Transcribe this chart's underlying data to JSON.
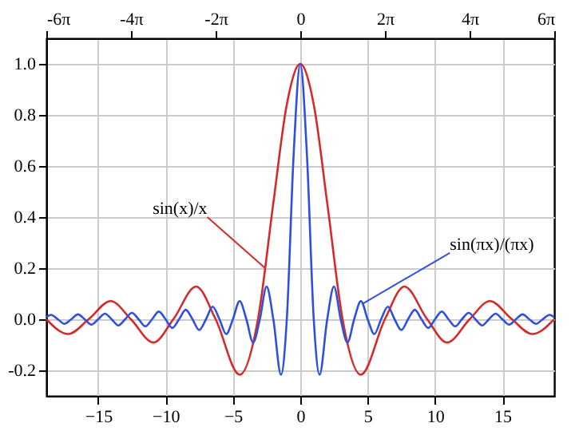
{
  "chart_data": {
    "type": "line",
    "xlim": [
      -18.85,
      18.85
    ],
    "xticks": [
      -15,
      -10,
      -5,
      0,
      5,
      10,
      15
    ],
    "x2lim": [
      -18.85,
      18.85
    ],
    "x2ticks": [
      {
        "value": -18.85,
        "label": "-6π"
      },
      {
        "value": -12.57,
        "label": "-4π"
      },
      {
        "value": -6.28,
        "label": "-2π"
      },
      0,
      {
        "value": 6.28,
        "label": "2π"
      },
      {
        "value": 12.57,
        "label": "4π"
      },
      {
        "value": 18.85,
        "label": "6π"
      }
    ],
    "ylim": [
      -0.3,
      1.1
    ],
    "yticks": [
      {
        "value": -0.2,
        "label": "-0.2"
      },
      {
        "value": 0,
        "label": "0.0"
      },
      {
        "value": 0.2,
        "label": "0.2"
      },
      {
        "value": 0.4,
        "label": "0.4"
      },
      {
        "value": 0.6,
        "label": "0.6"
      },
      {
        "value": 0.8,
        "label": "0.8"
      },
      {
        "value": 1.0,
        "label": "1.0"
      }
    ],
    "grid": true,
    "line_style": "solid",
    "marker": "none",
    "series": [
      {
        "color": "#d42a2a",
        "x": [
          -18.85,
          -17.22,
          -15.71,
          -14.07,
          -12.57,
          -10.9,
          -9.42,
          -7.73,
          -6.28,
          -4.49,
          -3.14,
          -2,
          -1,
          0,
          1,
          2,
          3.14,
          4.49,
          6.28,
          7.73,
          9.42,
          10.9,
          12.57,
          14.07,
          15.71,
          17.22,
          18.85
        ],
        "values": [
          0,
          -0.058,
          0,
          0.071,
          0,
          -0.091,
          0,
          0.128,
          0,
          -0.217,
          0,
          0.455,
          0.841,
          1,
          0.841,
          0.455,
          0,
          -0.217,
          0,
          0.128,
          0,
          -0.091,
          0,
          0.071,
          0,
          -0.058,
          0
        ]
      },
      {
        "color": "#2f4fe0",
        "x": [
          -18.85,
          -18.5,
          -18,
          -17.5,
          -17,
          -16.5,
          -16,
          -15.5,
          -15,
          -14.5,
          -14,
          -13.5,
          -13,
          -12.5,
          -12,
          -11.5,
          -11,
          -10.5,
          -10,
          -9.5,
          -9,
          -8.5,
          -8,
          -7.5,
          -7,
          -6.5,
          -6,
          -5.5,
          -5,
          -4.5,
          -4,
          -3.5,
          -3,
          -2.5,
          -2,
          -1.43,
          -1,
          -0.5,
          0,
          0.5,
          1,
          1.43,
          2,
          2.5,
          3,
          3.5,
          4,
          4.5,
          5,
          5.5,
          6,
          6.5,
          7,
          7.5,
          8,
          8.5,
          9,
          9.5,
          10,
          10.5,
          11,
          11.5,
          12,
          12.5,
          13,
          13.5,
          14,
          14.5,
          15,
          15.5,
          16,
          16.5,
          17,
          17.5,
          18,
          18.5,
          18.85
        ],
        "values": [
          0.008,
          0.017,
          0,
          -0.018,
          0,
          0.019,
          0,
          -0.021,
          0,
          0.022,
          0,
          -0.024,
          0,
          0.025,
          0,
          -0.028,
          0,
          0.03,
          0,
          -0.034,
          0,
          0.037,
          0,
          -0.042,
          0,
          0.049,
          0,
          -0.058,
          0,
          0.071,
          0,
          -0.091,
          0,
          0.128,
          0,
          -0.217,
          0,
          0.637,
          1,
          0.637,
          0,
          -0.217,
          0,
          0.128,
          0,
          -0.091,
          0,
          0.071,
          0,
          -0.058,
          0,
          0.049,
          0,
          -0.042,
          0,
          0.037,
          0,
          -0.034,
          0,
          0.03,
          0,
          -0.028,
          0,
          0.025,
          0,
          -0.024,
          0,
          0.022,
          0,
          -0.021,
          0,
          0.019,
          0,
          -0.018,
          0,
          0.017,
          0.008
        ]
      }
    ],
    "annotations": [
      {
        "text": "sin(x)/x",
        "x": -2.6,
        "y": 0.2
      },
      {
        "text": "sin(πx)/(πx)",
        "x": 4.6,
        "y": 0.06
      }
    ]
  }
}
